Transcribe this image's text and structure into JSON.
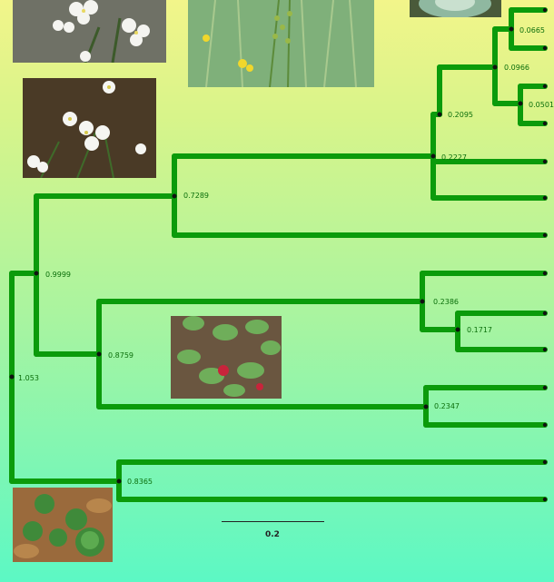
{
  "tree": {
    "branch_color": "#0b9b0b",
    "label_color": "#0b6e0b",
    "internal_nodes": [
      {
        "id": "root",
        "support": "1.053"
      },
      {
        "id": "n1",
        "support": "0.9999"
      },
      {
        "id": "n2",
        "support": "0.7289"
      },
      {
        "id": "n3",
        "support": "0.2227"
      },
      {
        "id": "n4",
        "support": "0.2095"
      },
      {
        "id": "n5",
        "support": "0.0966"
      },
      {
        "id": "n6",
        "support": "0.0665"
      },
      {
        "id": "n7",
        "support": "0.0501"
      },
      {
        "id": "n8",
        "support": "0.8759"
      },
      {
        "id": "n9",
        "support": "0.2386"
      },
      {
        "id": "n10",
        "support": "0.1717"
      },
      {
        "id": "n11",
        "support": "0.2347"
      },
      {
        "id": "n12",
        "support": "0.8365"
      }
    ],
    "leaf_count": 14
  },
  "scale_bar": {
    "label": "0.2"
  },
  "photos": [
    {
      "subject": "white-flowers-close-up"
    },
    {
      "subject": "yellow-flowering-stalks"
    },
    {
      "subject": "cabbage-head"
    },
    {
      "subject": "white-flower-cluster"
    },
    {
      "subject": "radish-seedlings"
    },
    {
      "subject": "round-leaf-plant"
    }
  ]
}
